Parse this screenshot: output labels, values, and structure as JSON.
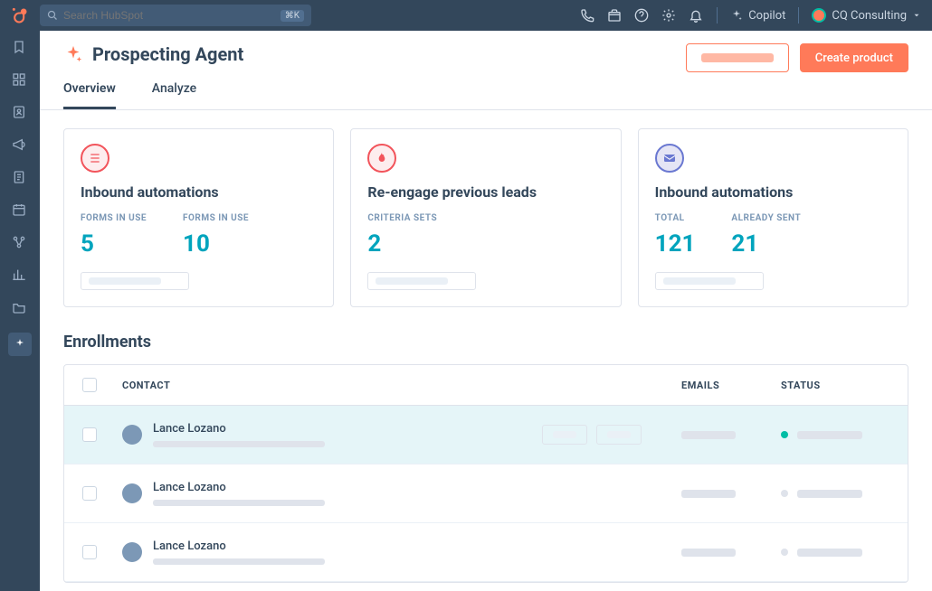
{
  "topbar": {
    "search_placeholder": "Search HubSpot",
    "search_shortcut": "⌘K",
    "copilot_label": "Copilot",
    "workspace_label": "CQ Consulting"
  },
  "page": {
    "title": "Prospecting Agent",
    "primary_button": "Create product"
  },
  "tabs": [
    {
      "label": "Overview",
      "active": true
    },
    {
      "label": "Analyze",
      "active": false
    }
  ],
  "cards": [
    {
      "title": "Inbound automations",
      "icon": "list",
      "icon_color": "orange",
      "stats": [
        {
          "label": "FORMS IN USE",
          "value": "5"
        },
        {
          "label": "FORMS IN USE",
          "value": "10"
        }
      ]
    },
    {
      "title": "Re-engage previous leads",
      "icon": "flame",
      "icon_color": "red",
      "stats": [
        {
          "label": "CRITERIA SETS",
          "value": "2"
        }
      ]
    },
    {
      "title": "Inbound automations",
      "icon": "mail",
      "icon_color": "purple",
      "stats": [
        {
          "label": "TOTAL",
          "value": "121"
        },
        {
          "label": "ALREADY SENT",
          "value": "21"
        }
      ]
    }
  ],
  "enrollments": {
    "title": "Enrollments",
    "columns": {
      "contact": "CONTACT",
      "emails": "EMAILS",
      "status": "STATUS"
    },
    "rows": [
      {
        "name": "Lance Lozano",
        "hover": true,
        "show_actions": true,
        "status": "active"
      },
      {
        "name": "Lance Lozano",
        "hover": false,
        "show_actions": false,
        "status": "idle"
      },
      {
        "name": "Lance Lozano",
        "hover": false,
        "show_actions": false,
        "status": "idle"
      }
    ]
  },
  "colors": {
    "navy": "#33475b",
    "accent": "#ff7a59",
    "teal": "#00a4bd",
    "green": "#00bda5",
    "border": "#dfe3eb"
  }
}
